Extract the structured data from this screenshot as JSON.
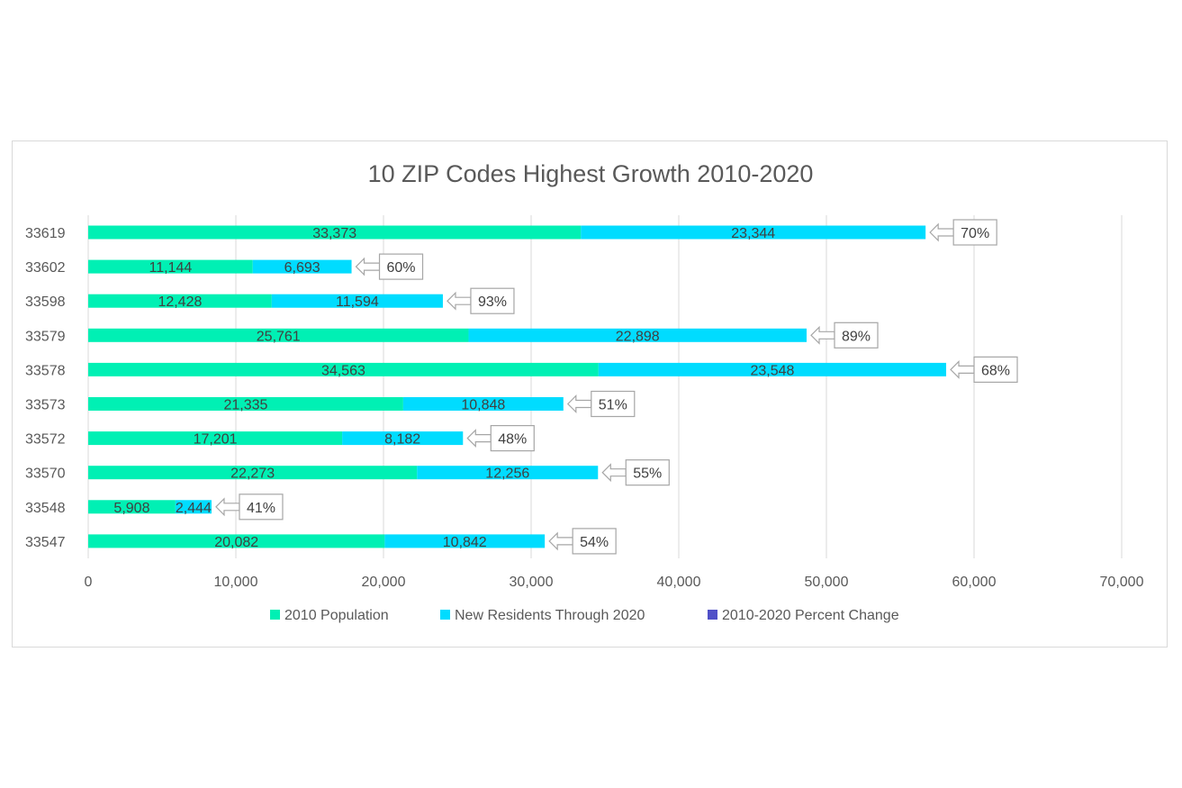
{
  "chart_data": {
    "type": "bar",
    "orientation": "horizontal",
    "stacked": true,
    "title": "10 ZIP Codes Highest Growth 2010-2020",
    "categories": [
      "33619",
      "33602",
      "33598",
      "33579",
      "33578",
      "33573",
      "33572",
      "33570",
      "33548",
      "33547"
    ],
    "series": [
      {
        "name": "2010 Population",
        "color": "#00f0b4",
        "values": [
          33373,
          11144,
          12428,
          25761,
          34563,
          21335,
          17201,
          22273,
          5908,
          20082
        ],
        "labels": [
          "33,373",
          "11,144",
          "12,428",
          "25,761",
          "34,563",
          "21,335",
          "17,201",
          "22,273",
          "5,908",
          "20,082"
        ]
      },
      {
        "name": "New Residents Through 2020",
        "color": "#00dcff",
        "values": [
          23344,
          6693,
          11594,
          22898,
          23548,
          10848,
          8182,
          12256,
          2444,
          10842
        ],
        "labels": [
          "23,344",
          "6,693",
          "11,594",
          "22,898",
          "23,548",
          "10,848",
          "8,182",
          "12,256",
          "2,444",
          "10,842"
        ]
      },
      {
        "name": "2010-2020 Percent Change",
        "color": "#5050c8",
        "values": [
          70,
          60,
          93,
          89,
          68,
          51,
          48,
          55,
          41,
          54
        ],
        "labels": [
          "70%",
          "60%",
          "93%",
          "89%",
          "68%",
          "51%",
          "48%",
          "55%",
          "41%",
          "54%"
        ]
      }
    ],
    "xlim": [
      0,
      70000
    ],
    "xticks": [
      0,
      10000,
      20000,
      30000,
      40000,
      50000,
      60000,
      70000
    ],
    "xtick_labels": [
      "0",
      "10,000",
      "20,000",
      "30,000",
      "40,000",
      "50,000",
      "60,000",
      "70,000"
    ],
    "xlabel": "",
    "ylabel": "",
    "grid": true,
    "legend_position": "bottom"
  }
}
